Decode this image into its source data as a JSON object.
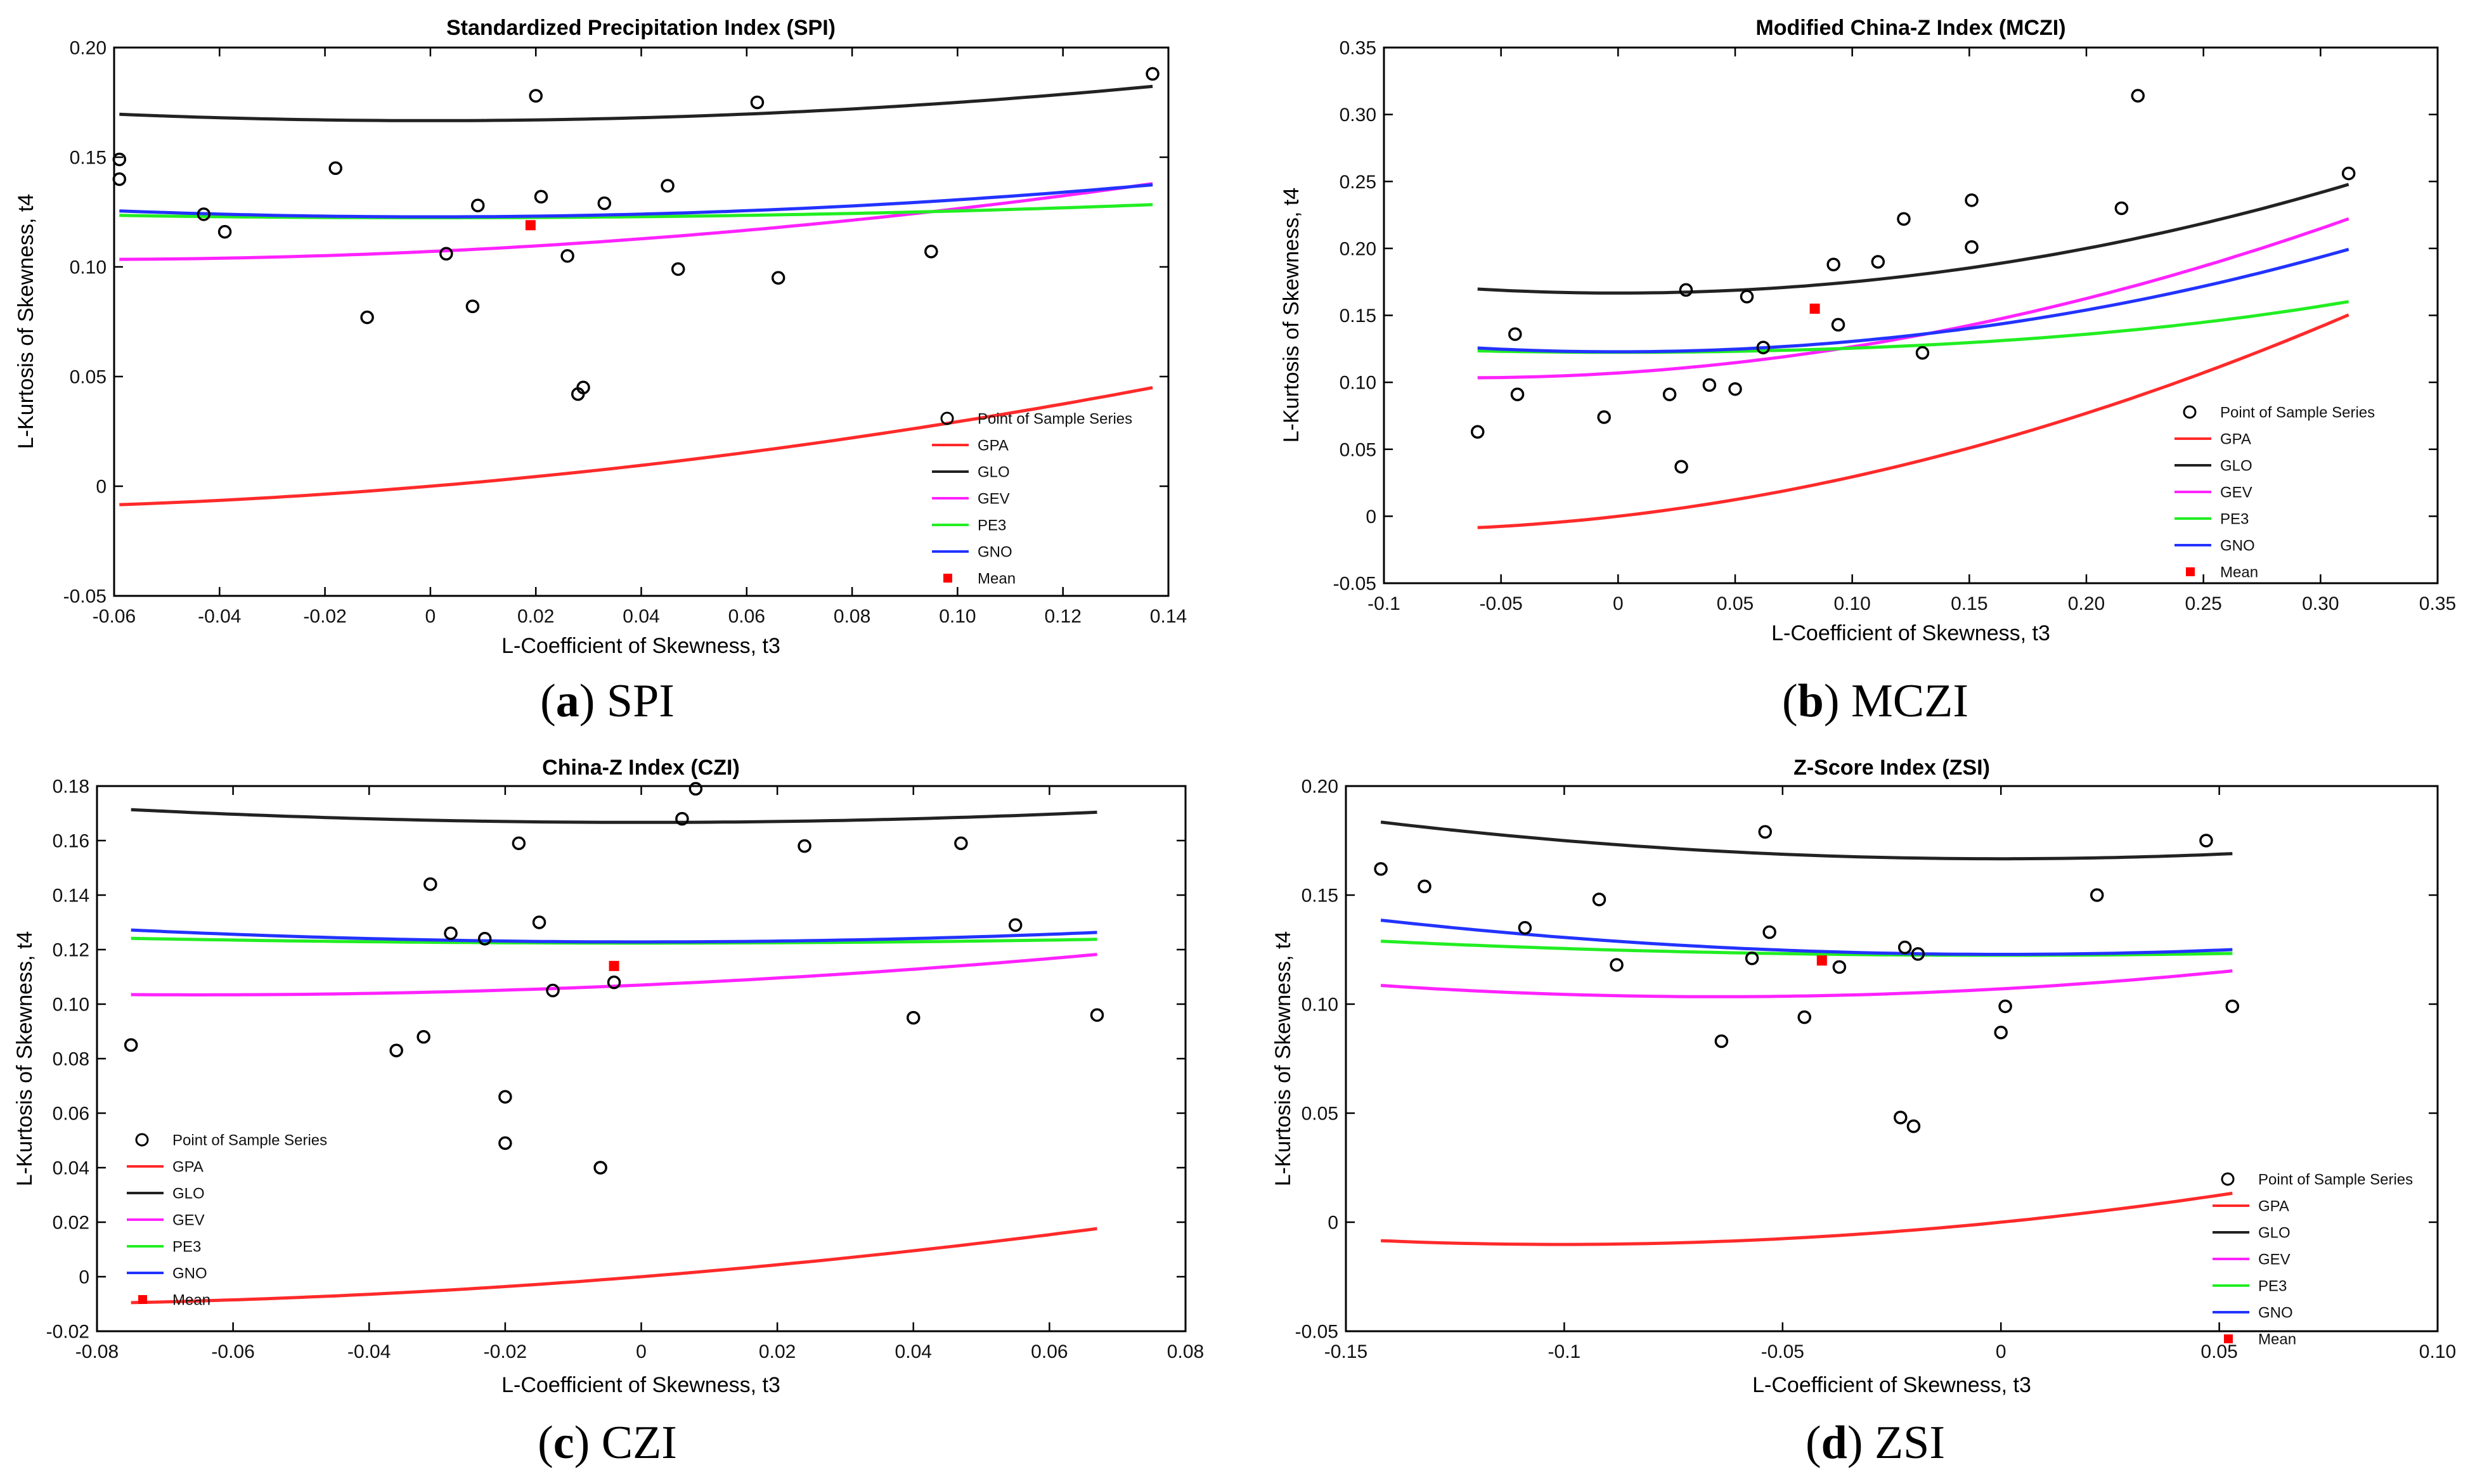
{
  "charts": [
    {
      "id": "a",
      "type": "scatter",
      "title": "Standardized Precipitation Index (SPI)",
      "xlabel": "L-Coefficient of Skewness, t3",
      "ylabel": "L-Kurtosis of Skewness, t4",
      "xlim": [
        -0.06,
        0.14
      ],
      "ylim": [
        -0.05,
        0.2
      ],
      "xticks": [
        -0.06,
        -0.04,
        -0.02,
        0,
        0.02,
        0.04,
        0.06,
        0.08,
        0.1,
        0.12,
        0.14
      ],
      "xtick_labels": [
        "-0.06",
        "-0.04",
        "-0.02",
        "0",
        "0.02",
        "0.04",
        "0.06",
        "0.08",
        "0.10",
        "0.12",
        "0.14"
      ],
      "yticks": [
        -0.05,
        0,
        0.05,
        0.1,
        0.15,
        0.2
      ],
      "ytick_labels": [
        "-0.05",
        "0",
        "0.05",
        "0.10",
        "0.15",
        "0.20"
      ],
      "curve_x": [
        -0.059,
        0.137
      ],
      "points": [
        [
          -0.059,
          0.149
        ],
        [
          -0.059,
          0.14
        ],
        [
          -0.043,
          0.124
        ],
        [
          -0.039,
          0.116
        ],
        [
          -0.018,
          0.145
        ],
        [
          -0.012,
          0.077
        ],
        [
          0.003,
          0.106
        ],
        [
          0.008,
          0.082
        ],
        [
          0.009,
          0.128
        ],
        [
          0.02,
          0.178
        ],
        [
          0.021,
          0.132
        ],
        [
          0.026,
          0.105
        ],
        [
          0.028,
          0.042
        ],
        [
          0.029,
          0.045
        ],
        [
          0.033,
          0.129
        ],
        [
          0.045,
          0.137
        ],
        [
          0.047,
          0.099
        ],
        [
          0.062,
          0.175
        ],
        [
          0.066,
          0.095
        ],
        [
          0.095,
          0.107
        ],
        [
          0.137,
          0.188
        ]
      ],
      "mean": [
        0.019,
        0.119
      ],
      "legend": {
        "position": "bottom-right",
        "sample_label": "Point of Sample Series",
        "mean_label": "Mean"
      },
      "caption": {
        "letter": "a",
        "name": "SPI"
      }
    },
    {
      "id": "b",
      "type": "scatter",
      "title": "Modified China-Z Index (MCZI)",
      "xlabel": "L-Coefficient of Skewness, t3",
      "ylabel": "L-Kurtosis of Skewness, t4",
      "xlim": [
        -0.1,
        0.35
      ],
      "ylim": [
        -0.05,
        0.35
      ],
      "xticks": [
        -0.1,
        -0.05,
        0,
        0.05,
        0.1,
        0.15,
        0.2,
        0.25,
        0.3,
        0.35
      ],
      "xtick_labels": [
        "-0.1",
        "-0.05",
        "0",
        "0.05",
        "0.10",
        "0.15",
        "0.20",
        "0.25",
        "0.30",
        "0.35"
      ],
      "yticks": [
        -0.05,
        0,
        0.05,
        0.1,
        0.15,
        0.2,
        0.25,
        0.3,
        0.35
      ],
      "ytick_labels": [
        "-0.05",
        "0",
        "0.05",
        "0.10",
        "0.15",
        "0.20",
        "0.25",
        "0.30",
        "0.35"
      ],
      "curve_x": [
        -0.06,
        0.312
      ],
      "points": [
        [
          -0.06,
          0.063
        ],
        [
          -0.044,
          0.136
        ],
        [
          -0.043,
          0.091
        ],
        [
          -0.006,
          0.074
        ],
        [
          0.022,
          0.091
        ],
        [
          0.027,
          0.037
        ],
        [
          0.029,
          0.169
        ],
        [
          0.039,
          0.098
        ],
        [
          0.05,
          0.095
        ],
        [
          0.055,
          0.164
        ],
        [
          0.062,
          0.126
        ],
        [
          0.092,
          0.188
        ],
        [
          0.094,
          0.143
        ],
        [
          0.111,
          0.19
        ],
        [
          0.122,
          0.222
        ],
        [
          0.13,
          0.122
        ],
        [
          0.151,
          0.236
        ],
        [
          0.151,
          0.201
        ],
        [
          0.215,
          0.23
        ],
        [
          0.222,
          0.314
        ],
        [
          0.312,
          0.256
        ]
      ],
      "mean": [
        0.084,
        0.155
      ],
      "legend": {
        "position": "bottom-right",
        "sample_label": "Point of Sample Series",
        "mean_label": "Mean"
      },
      "caption": {
        "letter": "b",
        "name": "MCZI"
      }
    },
    {
      "id": "c",
      "type": "scatter",
      "title": "China-Z Index (CZI)",
      "xlabel": "L-Coefficient of Skewness, t3",
      "ylabel": "L-Kurtosis of Skewness, t4",
      "xlim": [
        -0.08,
        0.08
      ],
      "ylim": [
        -0.02,
        0.18
      ],
      "xticks": [
        -0.08,
        -0.06,
        -0.04,
        -0.02,
        0,
        0.02,
        0.04,
        0.06,
        0.08
      ],
      "xtick_labels": [
        "-0.08",
        "-0.06",
        "-0.04",
        "-0.02",
        "0",
        "0.02",
        "0.04",
        "0.06",
        "0.08"
      ],
      "yticks": [
        -0.02,
        0,
        0.02,
        0.04,
        0.06,
        0.08,
        0.1,
        0.12,
        0.14,
        0.16,
        0.18
      ],
      "ytick_labels": [
        "-0.02",
        "0",
        "0.02",
        "0.04",
        "0.06",
        "0.08",
        "0.10",
        "0.12",
        "0.14",
        "0.16",
        "0.18"
      ],
      "curve_x": [
        -0.075,
        0.067
      ],
      "points": [
        [
          -0.075,
          0.085
        ],
        [
          -0.036,
          0.083
        ],
        [
          -0.032,
          0.088
        ],
        [
          -0.031,
          0.144
        ],
        [
          -0.028,
          0.126
        ],
        [
          -0.023,
          0.124
        ],
        [
          -0.02,
          0.066
        ],
        [
          -0.02,
          0.049
        ],
        [
          -0.018,
          0.159
        ],
        [
          -0.015,
          0.13
        ],
        [
          -0.013,
          0.105
        ],
        [
          -0.006,
          0.04
        ],
        [
          -0.004,
          0.108
        ],
        [
          0.006,
          0.168
        ],
        [
          0.008,
          0.179
        ],
        [
          0.024,
          0.158
        ],
        [
          0.04,
          0.095
        ],
        [
          0.047,
          0.159
        ],
        [
          0.055,
          0.129
        ],
        [
          0.067,
          0.096
        ]
      ],
      "mean": [
        -0.004,
        0.114
      ],
      "legend": {
        "position": "bottom-left",
        "sample_label": "Point of Sample Series",
        "mean_label": "Mean"
      },
      "caption": {
        "letter": "c",
        "name": "CZI"
      }
    },
    {
      "id": "d",
      "type": "scatter",
      "title": "Z-Score Index (ZSI)",
      "xlabel": "L-Coefficient of Skewness, t3",
      "ylabel": "L-Kurtosis of Skewness, t4",
      "xlim": [
        -0.15,
        0.1
      ],
      "ylim": [
        -0.05,
        0.2
      ],
      "xticks": [
        -0.15,
        -0.1,
        -0.05,
        0,
        0.05,
        0.1
      ],
      "xtick_labels": [
        "-0.15",
        "-0.1",
        "-0.05",
        "0",
        "0.05",
        "0.10"
      ],
      "yticks": [
        -0.05,
        0,
        0.05,
        0.1,
        0.15,
        0.2
      ],
      "ytick_labels": [
        "-0.05",
        "0",
        "0.05",
        "0.10",
        "0.15",
        "0.20"
      ],
      "curve_x": [
        -0.142,
        0.053
      ],
      "points": [
        [
          -0.142,
          0.162
        ],
        [
          -0.132,
          0.154
        ],
        [
          -0.109,
          0.135
        ],
        [
          -0.092,
          0.148
        ],
        [
          -0.088,
          0.118
        ],
        [
          -0.064,
          0.083
        ],
        [
          -0.057,
          0.121
        ],
        [
          -0.054,
          0.179
        ],
        [
          -0.053,
          0.133
        ],
        [
          -0.045,
          0.094
        ],
        [
          -0.037,
          0.117
        ],
        [
          -0.023,
          0.048
        ],
        [
          -0.022,
          0.126
        ],
        [
          -0.02,
          0.044
        ],
        [
          -0.019,
          0.123
        ],
        [
          0,
          0.087
        ],
        [
          0.001,
          0.099
        ],
        [
          0.022,
          0.15
        ],
        [
          0.047,
          0.175
        ],
        [
          0.053,
          0.099
        ]
      ],
      "mean": [
        -0.041,
        0.12
      ],
      "legend": {
        "position": "bottom-right",
        "sample_label": "Point of Sample Series",
        "mean_label": "Mean"
      },
      "caption": {
        "letter": "d",
        "name": "ZSI"
      }
    }
  ],
  "distributions": [
    {
      "name": "GPA",
      "color": "#ff2a2a"
    },
    {
      "name": "GLO",
      "color": "#222222"
    },
    {
      "name": "GEV",
      "color": "#ff22ff"
    },
    {
      "name": "PE3",
      "color": "#22ee22"
    },
    {
      "name": "GNO",
      "color": "#2233ff"
    }
  ],
  "colors": {
    "points": "#000000",
    "mean": "#ff0000",
    "axis": "#000000"
  }
}
